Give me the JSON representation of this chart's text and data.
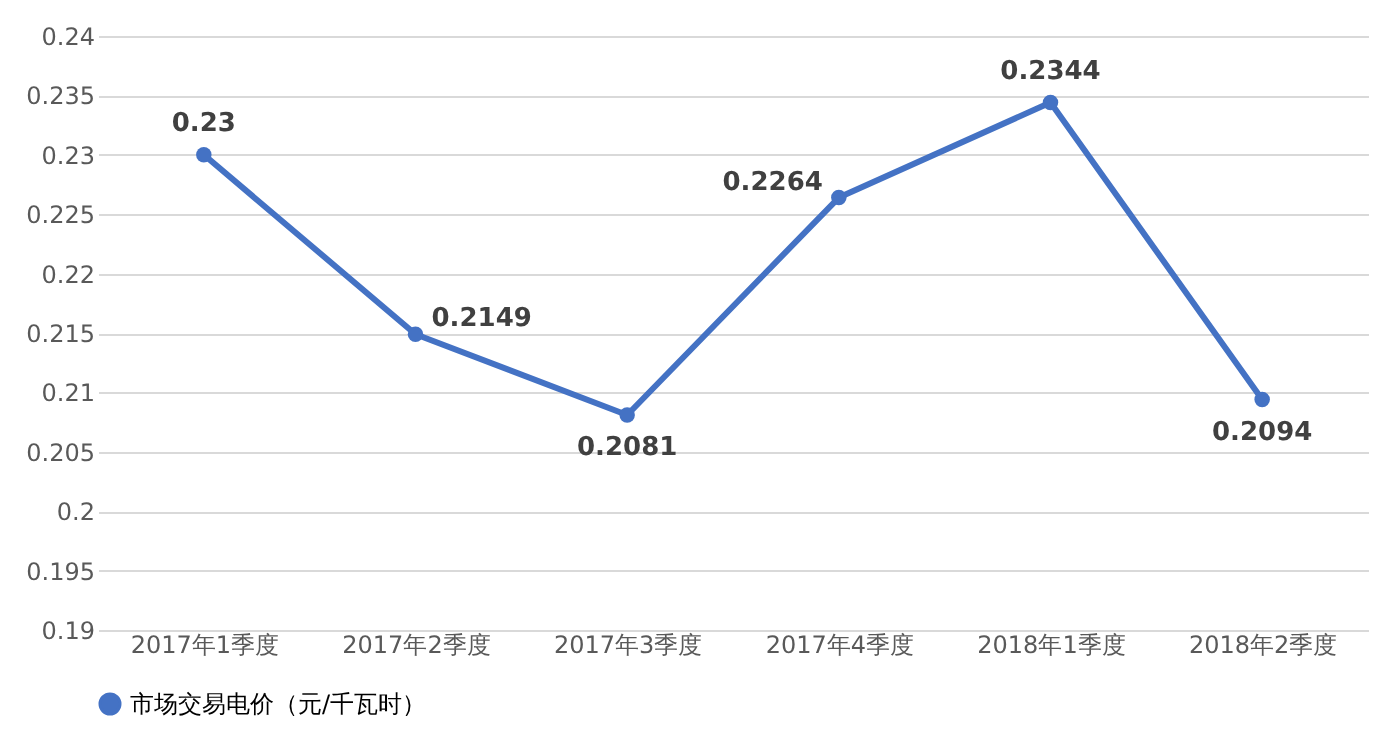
{
  "chart_data": {
    "type": "line",
    "categories": [
      "2017年1季度",
      "2017年2季度",
      "2017年3季度",
      "2017年4季度",
      "2018年1季度",
      "2018年2季度"
    ],
    "series": [
      {
        "name": "市场交易电价（元/千瓦时）",
        "color": "#4472c4",
        "values": [
          0.23,
          0.2149,
          0.2081,
          0.2264,
          0.2344,
          0.2094
        ]
      }
    ],
    "ylim": [
      0.19,
      0.24
    ],
    "yticks": [
      0.19,
      0.195,
      0.2,
      0.205,
      0.21,
      0.215,
      0.22,
      0.225,
      0.23,
      0.235,
      0.24
    ],
    "grid": "y",
    "legend": "bottom",
    "marker": "circle",
    "line_style": "solid",
    "data_labels": true
  }
}
